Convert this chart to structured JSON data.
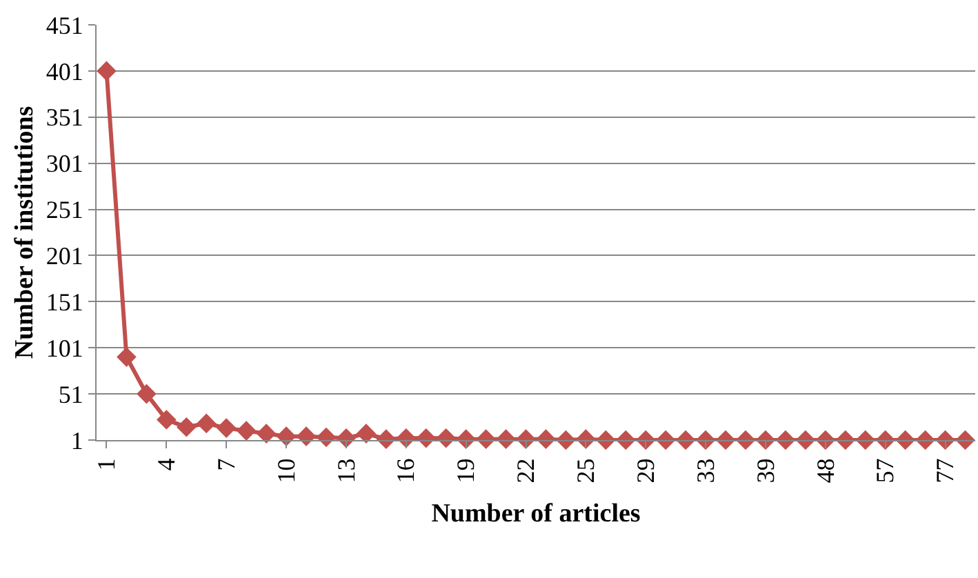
{
  "chart_data": {
    "type": "line",
    "xlabel": "Number of articles",
    "ylabel": "Number of institutions",
    "categories": [
      "1",
      null,
      null,
      "4",
      null,
      null,
      "7",
      null,
      null,
      "10",
      null,
      null,
      "13",
      null,
      null,
      "16",
      null,
      null,
      "19",
      null,
      null,
      "22",
      null,
      null,
      "25",
      null,
      null,
      "29",
      null,
      null,
      "33",
      null,
      null,
      "39",
      null,
      null,
      "48",
      null,
      null,
      "57",
      null,
      null,
      "77",
      null
    ],
    "series": [
      {
        "color": "#c0504d",
        "values": [
          401,
          91,
          51,
          23,
          15,
          19,
          14,
          11,
          8,
          5,
          5,
          4,
          3,
          8,
          2,
          3,
          3,
          3,
          2,
          2,
          2,
          2,
          2,
          1,
          2,
          1,
          1,
          1,
          1,
          1,
          1,
          1,
          1,
          1,
          1,
          1,
          1,
          1,
          1,
          1,
          1,
          1,
          1,
          1
        ]
      }
    ],
    "ylim": [
      1,
      451
    ],
    "yticks": [
      1,
      51,
      101,
      151,
      201,
      251,
      301,
      351,
      401,
      451
    ],
    "grid": "y",
    "marker": "diamond",
    "line_style": "solid"
  }
}
